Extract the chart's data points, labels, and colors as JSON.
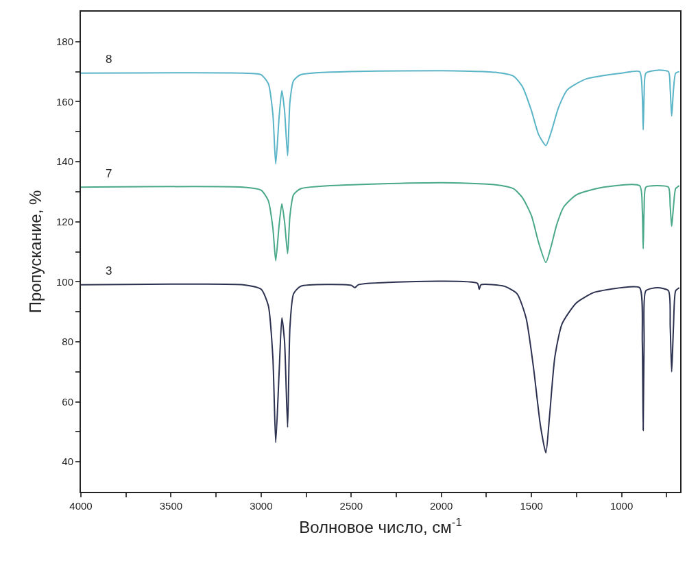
{
  "chart_data": {
    "type": "line",
    "xlabel": "Волновое число, см$^{-1}$",
    "ylabel": "Пропускание, %",
    "xlim": [
      4000,
      675
    ],
    "xticks": [
      4000,
      {
        "value": 3750,
        "label": null
      },
      3500,
      {
        "value": 3250,
        "label": null
      },
      3000,
      {
        "value": 2750,
        "label": null
      },
      2500,
      {
        "value": 2250,
        "label": null
      },
      2000,
      {
        "value": 1750,
        "label": null
      },
      1500,
      {
        "value": 1250,
        "label": null
      },
      1000,
      {
        "value": 750,
        "label": null
      }
    ],
    "ylim": [
      30,
      190
    ],
    "yticks": [
      40,
      {
        "value": 50,
        "label": null
      },
      60,
      {
        "value": 70,
        "label": null
      },
      80,
      {
        "value": 90,
        "label": null
      },
      100,
      {
        "value": 110,
        "label": null
      },
      120,
      {
        "value": 130,
        "label": null
      },
      140,
      {
        "value": 150,
        "label": null
      },
      160,
      {
        "value": 170,
        "label": null
      },
      180
    ],
    "legend": false,
    "line_style": "solid",
    "marker": "none",
    "series": [
      {
        "name": "8",
        "color": "#5ab4c8",
        "x": [
          4000,
          3100,
          3000,
          2960,
          2935,
          2919,
          2900,
          2885,
          2870,
          2853,
          2840,
          2820,
          2780,
          2000,
          1700,
          1600,
          1550,
          1500,
          1460,
          1420,
          1390,
          1350,
          1300,
          1200,
          1000,
          900,
          885,
          880,
          875,
          865,
          800,
          740,
          730,
          722,
          712,
          700,
          680
        ],
        "values": [
          169.5,
          169.5,
          169,
          166,
          156,
          139.2,
          155,
          163.7,
          157,
          142,
          160,
          167,
          169,
          170.3,
          169.8,
          168.5,
          165,
          157,
          149,
          145.4,
          150,
          158,
          164,
          167.5,
          169.5,
          170,
          162,
          150.6,
          162,
          169.5,
          170.5,
          170,
          164,
          155.2,
          164,
          169.5,
          170
        ]
      },
      {
        "name": "7",
        "color": "#4aa88a",
        "x": [
          4000,
          3100,
          3000,
          2960,
          2935,
          2919,
          2900,
          2885,
          2870,
          2853,
          2840,
          2820,
          2780,
          2000,
          1700,
          1600,
          1550,
          1500,
          1460,
          1420,
          1390,
          1360,
          1320,
          1250,
          1100,
          900,
          885,
          880,
          875,
          865,
          800,
          740,
          730,
          722,
          712,
          700,
          680
        ],
        "values": [
          131.5,
          131.5,
          130.5,
          127,
          118,
          107,
          119,
          126,
          120,
          109.4,
          122,
          129,
          131,
          133,
          132.3,
          131,
          128,
          122,
          113,
          106.4,
          112,
          119,
          125,
          129,
          131.5,
          132,
          124,
          111,
          124,
          131.5,
          132,
          131.5,
          125,
          118.5,
          125,
          131,
          132
        ]
      },
      {
        "name": "3",
        "color": "#2c3150",
        "x": [
          4000,
          3500,
          3100,
          3000,
          2960,
          2935,
          2919,
          2900,
          2885,
          2870,
          2853,
          2840,
          2820,
          2780,
          2500,
          2480,
          2460,
          2000,
          1800,
          1790,
          1780,
          1650,
          1580,
          1530,
          1490,
          1450,
          1420,
          1400,
          1370,
          1330,
          1250,
          1150,
          1000,
          900,
          885,
          880,
          875,
          865,
          800,
          740,
          730,
          722,
          712,
          700,
          680
        ],
        "values": [
          99,
          99.2,
          99,
          97.5,
          92,
          75,
          46.4,
          70,
          88,
          80,
          51.5,
          85,
          96,
          98.5,
          98.8,
          98,
          99,
          100.2,
          99.5,
          97.5,
          99,
          98.5,
          96,
          88,
          72,
          52,
          43,
          55,
          75,
          86,
          93,
          96.5,
          98,
          98,
          80,
          50.5,
          80,
          97,
          98,
          97,
          85,
          70,
          85,
          97,
          98
        ]
      }
    ]
  }
}
